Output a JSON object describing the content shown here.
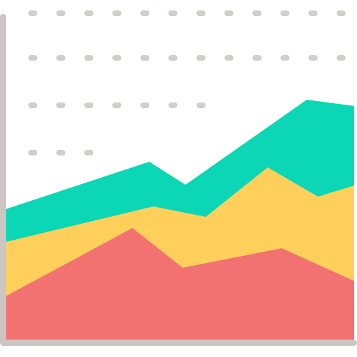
{
  "icon": {
    "name": "stacked-area-chart-icon",
    "colors": {
      "background": "#ffffff",
      "axis": "#cbc6c3",
      "dots": "#d1cdcb",
      "area_teal": "#0bd6b6",
      "area_yellow": "#ffcf5c",
      "area_red": "#f27171"
    }
  }
}
